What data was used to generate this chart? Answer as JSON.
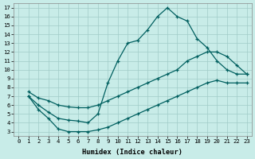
{
  "bg_color": "#c8ece8",
  "grid_color": "#a0ccc8",
  "line_color": "#005f5f",
  "xlabel": "Humidex (Indice chaleur)",
  "xlim": [
    -0.5,
    23.5
  ],
  "ylim": [
    2.5,
    17.5
  ],
  "yticks": [
    3,
    4,
    5,
    6,
    7,
    8,
    9,
    10,
    11,
    12,
    13,
    14,
    15,
    16,
    17
  ],
  "xticks": [
    0,
    1,
    2,
    3,
    4,
    5,
    6,
    7,
    8,
    9,
    10,
    11,
    12,
    13,
    14,
    15,
    16,
    17,
    18,
    19,
    20,
    21,
    22,
    23
  ],
  "curve1_x": [
    1,
    2,
    3,
    4,
    5,
    6,
    7,
    8,
    9,
    10,
    11,
    12,
    13,
    14,
    15,
    16,
    17,
    18,
    19,
    20,
    21,
    22,
    23
  ],
  "curve1_y": [
    7.0,
    6.0,
    5.2,
    4.5,
    4.3,
    4.2,
    4.0,
    5.0,
    8.5,
    11.0,
    13.0,
    13.3,
    14.5,
    16.0,
    17.0,
    16.0,
    15.5,
    13.5,
    12.5,
    11.0,
    10.0,
    9.5,
    9.5
  ],
  "curve2_x": [
    1,
    2,
    3,
    4,
    5,
    6,
    7,
    8,
    9,
    10,
    11,
    12,
    13,
    14,
    15,
    16,
    17,
    18,
    19,
    20,
    21,
    22,
    23
  ],
  "curve2_y": [
    7.5,
    6.8,
    6.5,
    6.0,
    5.8,
    5.7,
    5.7,
    6.0,
    6.5,
    7.0,
    7.5,
    8.0,
    8.5,
    9.0,
    9.5,
    10.0,
    11.0,
    11.5,
    12.0,
    12.0,
    11.5,
    10.5,
    9.5
  ],
  "curve3_x": [
    1,
    2,
    3,
    4,
    5,
    6,
    7,
    8,
    9,
    10,
    11,
    12,
    13,
    14,
    15,
    16,
    17,
    18,
    19,
    20,
    21,
    22,
    23
  ],
  "curve3_y": [
    7.0,
    5.5,
    4.5,
    3.3,
    3.0,
    3.0,
    3.0,
    3.2,
    3.5,
    4.0,
    4.5,
    5.0,
    5.5,
    6.0,
    6.5,
    7.0,
    7.5,
    8.0,
    8.5,
    8.8,
    8.5,
    8.5,
    8.5
  ]
}
